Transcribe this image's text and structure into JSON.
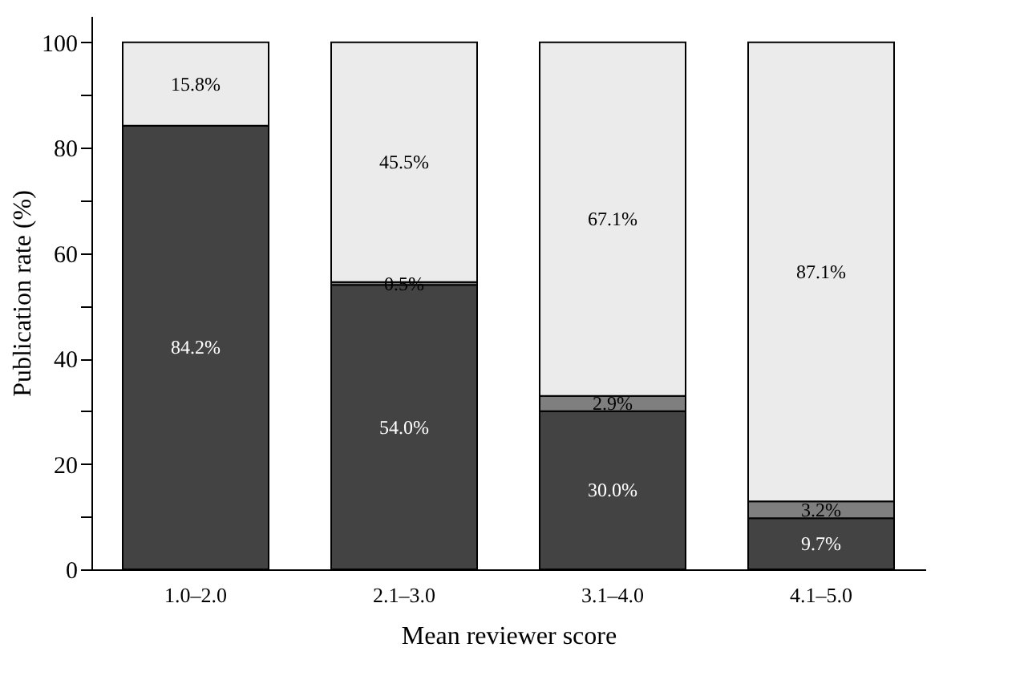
{
  "chart_data": {
    "type": "bar",
    "stacked": true,
    "xlabel": "Mean reviewer score",
    "ylabel": "Publication rate (%)",
    "categories": [
      "1.0–2.0",
      "2.1–3.0",
      "3.1–4.0",
      "4.1–5.0"
    ],
    "series": [
      {
        "color": "#434343",
        "values": [
          84.2,
          54.0,
          30.0,
          9.7
        ],
        "value_labels": [
          "84.2%",
          "54.0%",
          "30.0%",
          "9.7%"
        ]
      },
      {
        "color": "#7f7f7f",
        "values": [
          null,
          0.5,
          2.9,
          3.2
        ],
        "value_labels": [
          null,
          "0.5%",
          "2.9%",
          "3.2%"
        ]
      },
      {
        "color": "#ebebeb",
        "values": [
          15.8,
          45.5,
          67.1,
          87.1
        ],
        "value_labels": [
          "15.8%",
          "45.5%",
          "67.1%",
          "87.1%"
        ]
      }
    ],
    "ylim": [
      0,
      105
    ],
    "yticks": [
      0,
      {
        "value": 10,
        "label": null
      },
      20,
      {
        "value": 30,
        "label": null
      },
      40,
      {
        "value": 50,
        "label": null
      },
      60,
      {
        "value": 70,
        "label": null
      },
      80,
      {
        "value": 90,
        "label": null
      },
      100
    ],
    "grid": false,
    "legend": false
  }
}
